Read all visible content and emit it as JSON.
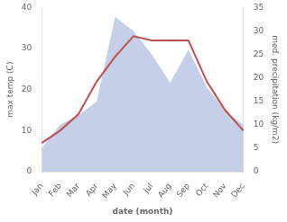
{
  "chart_data": {
    "type": "line",
    "categories": [
      "Jan",
      "Feb",
      "Mar",
      "Apr",
      "May",
      "Jun",
      "Jul",
      "Aug",
      "Sep",
      "Oct",
      "Nov",
      "Dec"
    ],
    "xlabel": "date (month)",
    "ylabel": "max temp (C)",
    "y2label": "med. precipitation (kg/m2)",
    "series": [
      {
        "type": "area",
        "axis": "y2",
        "color": "#c5cfe8",
        "values": [
          5,
          10,
          12,
          15,
          33,
          30,
          25,
          19,
          26,
          18,
          13,
          10
        ]
      },
      {
        "type": "line",
        "color": "#c0504d",
        "values": [
          7,
          10,
          14,
          22,
          28,
          33,
          32,
          32,
          32,
          22,
          15,
          10
        ]
      }
    ],
    "ylim": [
      0,
      40
    ],
    "yticks": [
      0,
      10,
      20,
      30,
      40
    ],
    "y2lim": [
      0,
      35
    ],
    "y2ticks": [
      0,
      5,
      10,
      15,
      20,
      25,
      30,
      35
    ],
    "grid": false
  }
}
